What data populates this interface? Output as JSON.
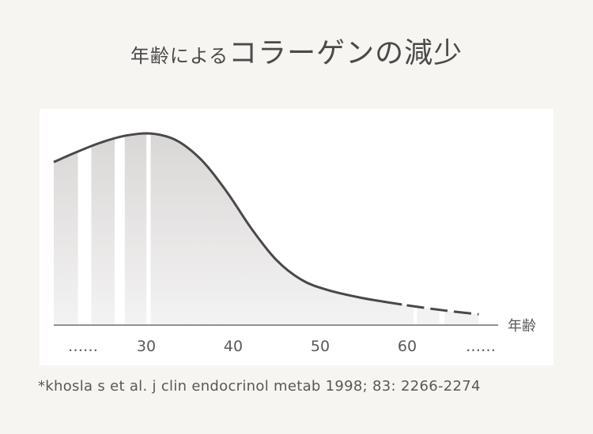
{
  "title": {
    "part1": "年齢による",
    "part2": "コラーゲンの減少"
  },
  "source_note": "*khosla s et al. j clin endocrinol metab 1998; 83: 2266-2274",
  "colors": {
    "background": "#f6f5f2",
    "panel": "#ffffff",
    "curve": "#4a4848",
    "fill_top": "#d9d7d6",
    "fill_bottom": "#f4f3f3"
  },
  "chart_data": {
    "type": "area",
    "title": "年齢によるコラーゲンの減少",
    "xlabel": "年齢",
    "ylabel": "",
    "x_ticks": [
      {
        "label": "……",
        "value": 20
      },
      {
        "label": "30",
        "value": 30
      },
      {
        "label": "40",
        "value": 40
      },
      {
        "label": "50",
        "value": 50
      },
      {
        "label": "60",
        "value": 60
      },
      {
        "label": "……",
        "value": 70
      }
    ],
    "xlim": [
      18.3,
      72
    ],
    "ylim": [
      0,
      100
    ],
    "series": [
      {
        "values": [
          {
            "x": 18.3,
            "y": 83
          },
          {
            "x": 21,
            "y": 88
          },
          {
            "x": 24,
            "y": 93
          },
          {
            "x": 27,
            "y": 96.5
          },
          {
            "x": 30,
            "y": 97.5
          },
          {
            "x": 33,
            "y": 94
          },
          {
            "x": 36,
            "y": 84
          },
          {
            "x": 39,
            "y": 68
          },
          {
            "x": 42,
            "y": 49
          },
          {
            "x": 45,
            "y": 33
          },
          {
            "x": 48,
            "y": 23
          },
          {
            "x": 51,
            "y": 18
          },
          {
            "x": 55,
            "y": 14
          },
          {
            "x": 60,
            "y": 10.5
          },
          {
            "x": 65,
            "y": 7.5
          },
          {
            "x": 69.2,
            "y": 5.5
          }
        ]
      }
    ],
    "solid_until_x": 60,
    "grid": false,
    "legend": "none"
  }
}
